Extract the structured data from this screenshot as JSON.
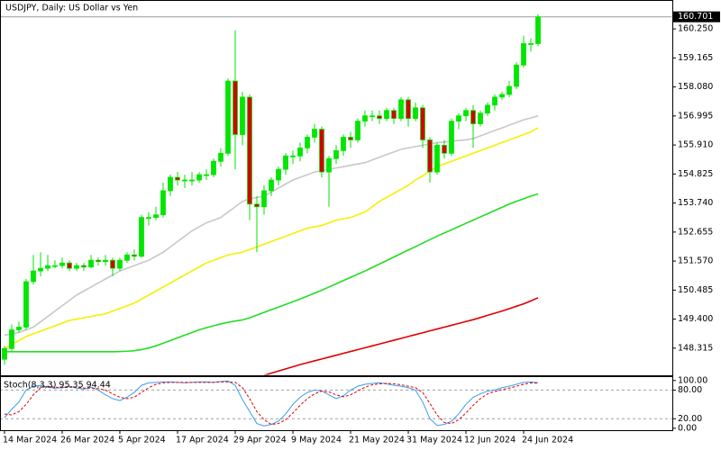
{
  "chart_data": {
    "type": "candlestick",
    "title": "USDJPY, Daily:  US Dollar vs Yen",
    "categories": [
      "14 Mar 2024",
      null,
      null,
      null,
      null,
      null,
      null,
      null,
      "26 Mar 2024",
      null,
      null,
      null,
      null,
      null,
      null,
      null,
      "5 Apr 2024",
      null,
      null,
      null,
      null,
      null,
      null,
      null,
      "17 Apr 2024",
      null,
      null,
      null,
      null,
      null,
      null,
      null,
      "29 Apr 2024",
      null,
      null,
      null,
      null,
      null,
      null,
      null,
      "9 May 2024",
      null,
      null,
      null,
      null,
      null,
      null,
      null,
      "21 May 2024",
      null,
      null,
      null,
      null,
      null,
      null,
      null,
      "31 May 2024",
      null,
      null,
      null,
      null,
      null,
      null,
      null,
      "12 Jun 2024",
      null,
      null,
      null,
      null,
      null,
      null,
      null,
      "24 Jun 2024",
      null,
      null
    ],
    "open": [
      147.9,
      148.3,
      149.0,
      149.1,
      150.8,
      151.2,
      151.3,
      151.4,
      151.4,
      151.5,
      151.3,
      151.4,
      151.35,
      151.6,
      151.55,
      151.6,
      151.3,
      151.6,
      151.8,
      151.75,
      153.2,
      153.2,
      153.3,
      154.2,
      154.7,
      154.6,
      154.6,
      154.6,
      154.8,
      154.8,
      155.3,
      155.6,
      158.3,
      156.3,
      157.7,
      153.7,
      153.6,
      154.2,
      154.6,
      155.0,
      155.5,
      155.5,
      155.8,
      156.2,
      156.5,
      154.9,
      155.4,
      155.7,
      156.2,
      156.1,
      156.8,
      157.0,
      157.0,
      156.9,
      157.2,
      156.9,
      157.6,
      156.9,
      157.3,
      156.1,
      154.9,
      155.9,
      155.6,
      156.8,
      157.0,
      157.2,
      156.7,
      157.1,
      157.4,
      157.7,
      157.8,
      158.1,
      158.9,
      159.7,
      159.7
    ],
    "high": [
      148.4,
      149.2,
      149.3,
      150.9,
      151.8,
      151.9,
      151.8,
      151.6,
      151.7,
      151.6,
      151.5,
      151.5,
      151.8,
      151.7,
      151.8,
      151.7,
      151.7,
      151.9,
      152.0,
      153.3,
      153.4,
      153.6,
      154.5,
      154.8,
      154.9,
      154.8,
      154.9,
      154.9,
      155.0,
      155.4,
      155.8,
      158.4,
      160.2,
      157.9,
      157.8,
      154.0,
      154.4,
      154.7,
      155.1,
      155.6,
      155.7,
      156.0,
      156.3,
      156.7,
      156.6,
      155.5,
      155.9,
      156.3,
      156.4,
      156.9,
      157.2,
      157.2,
      157.2,
      157.3,
      157.3,
      157.7,
      157.7,
      157.5,
      157.4,
      156.2,
      156.0,
      156.1,
      156.9,
      157.1,
      157.3,
      157.4,
      157.2,
      157.5,
      157.8,
      157.9,
      158.3,
      159.0,
      160.0,
      159.9,
      160.8
    ],
    "low": [
      147.7,
      148.2,
      148.9,
      149.0,
      150.7,
      151.0,
      151.2,
      151.3,
      151.3,
      151.2,
      151.2,
      151.2,
      151.3,
      151.4,
      151.4,
      151.0,
      151.2,
      151.5,
      151.6,
      151.7,
      152.9,
      153.1,
      153.2,
      154.0,
      154.4,
      154.3,
      154.4,
      154.5,
      154.6,
      154.7,
      155.1,
      155.5,
      155.0,
      155.9,
      153.1,
      151.9,
      153.3,
      154.0,
      154.4,
      154.8,
      155.2,
      155.3,
      155.6,
      156.0,
      154.7,
      153.6,
      155.2,
      155.5,
      155.8,
      156.0,
      156.6,
      156.8,
      156.7,
      156.8,
      156.7,
      156.8,
      156.6,
      156.8,
      155.8,
      154.5,
      154.8,
      155.4,
      155.5,
      156.5,
      156.8,
      155.8,
      156.6,
      157.0,
      157.2,
      157.6,
      157.7,
      158.0,
      158.8,
      159.4,
      159.6
    ],
    "close": [
      148.3,
      149.0,
      149.1,
      150.8,
      151.2,
      151.3,
      151.4,
      151.4,
      151.5,
      151.3,
      151.4,
      151.35,
      151.6,
      151.55,
      151.6,
      151.3,
      151.6,
      151.8,
      151.75,
      153.2,
      153.2,
      153.3,
      154.2,
      154.7,
      154.6,
      154.6,
      154.6,
      154.8,
      154.8,
      155.3,
      155.6,
      158.3,
      156.3,
      157.7,
      153.7,
      153.6,
      154.2,
      154.6,
      155.0,
      155.5,
      155.5,
      155.8,
      156.2,
      156.5,
      154.9,
      155.4,
      155.7,
      156.2,
      156.1,
      156.8,
      157.0,
      157.0,
      156.9,
      157.2,
      156.9,
      157.6,
      156.9,
      157.3,
      156.1,
      154.9,
      155.9,
      155.6,
      156.8,
      157.0,
      157.2,
      156.7,
      157.1,
      157.4,
      157.7,
      157.8,
      158.1,
      158.9,
      159.7,
      159.7,
      160.7
    ],
    "up_color": "#00e600",
    "down_color": "#d40000",
    "ylim": [
      147.3,
      161.33
    ],
    "yticks": [
      {
        "value": 160.25,
        "label": "160.250"
      },
      {
        "value": 159.165,
        "label": "159.165"
      },
      {
        "value": 158.08,
        "label": "158.080"
      },
      {
        "value": 156.995,
        "label": "156.995"
      },
      {
        "value": 155.91,
        "label": "155.910"
      },
      {
        "value": 154.825,
        "label": "154.825"
      },
      {
        "value": 153.74,
        "label": "153.740"
      },
      {
        "value": 152.655,
        "label": "152.655"
      },
      {
        "value": 151.57,
        "label": "151.570"
      },
      {
        "value": 150.485,
        "label": "150.485"
      },
      {
        "value": 149.4,
        "label": "149.400"
      },
      {
        "value": 148.315,
        "label": "148.315"
      }
    ],
    "last_price": {
      "value": 160.701,
      "label": "160.701"
    },
    "series": [
      {
        "color": "#c8c8c8",
        "values": [
          148.8,
          148.85,
          148.9,
          149.0,
          149.1,
          149.3,
          149.5,
          149.7,
          149.9,
          150.1,
          150.3,
          150.45,
          150.6,
          150.75,
          150.9,
          151.05,
          151.2,
          151.3,
          151.4,
          151.5,
          151.6,
          151.75,
          151.9,
          152.1,
          152.3,
          152.5,
          152.7,
          152.85,
          153.0,
          153.1,
          153.2,
          153.4,
          153.6,
          153.8,
          153.9,
          153.95,
          154.0,
          154.15,
          154.3,
          154.45,
          154.6,
          154.7,
          154.8,
          154.9,
          154.95,
          155.0,
          155.05,
          155.1,
          155.15,
          155.2,
          155.25,
          155.35,
          155.45,
          155.55,
          155.65,
          155.75,
          155.8,
          155.85,
          155.9,
          155.95,
          156.0,
          156.02,
          156.05,
          156.08,
          156.1,
          156.15,
          156.25,
          156.35,
          156.45,
          156.55,
          156.65,
          156.75,
          156.85,
          156.92,
          157.0
        ]
      },
      {
        "color": "#f5f000",
        "values": [
          148.3,
          148.45,
          148.6,
          148.75,
          148.85,
          148.95,
          149.05,
          149.15,
          149.25,
          149.35,
          149.4,
          149.45,
          149.5,
          149.55,
          149.6,
          149.7,
          149.8,
          149.9,
          150.0,
          150.15,
          150.3,
          150.45,
          150.6,
          150.75,
          150.9,
          151.05,
          151.2,
          151.35,
          151.5,
          151.6,
          151.7,
          151.8,
          151.85,
          151.9,
          152.0,
          152.1,
          152.2,
          152.3,
          152.4,
          152.5,
          152.6,
          152.7,
          152.8,
          152.85,
          152.9,
          153.0,
          153.1,
          153.15,
          153.2,
          153.3,
          153.4,
          153.6,
          153.8,
          153.95,
          154.1,
          154.25,
          154.4,
          154.6,
          154.75,
          154.95,
          155.1,
          155.2,
          155.3,
          155.4,
          155.5,
          155.6,
          155.7,
          155.8,
          155.9,
          156.0,
          156.1,
          156.2,
          156.3,
          156.4,
          156.55
        ]
      },
      {
        "color": "#22dd22",
        "values": [
          148.18,
          148.18,
          148.18,
          148.18,
          148.18,
          148.18,
          148.18,
          148.18,
          148.18,
          148.18,
          148.18,
          148.18,
          148.18,
          148.18,
          148.18,
          148.18,
          148.19,
          148.2,
          148.22,
          148.26,
          148.32,
          148.4,
          148.5,
          148.6,
          148.7,
          148.8,
          148.9,
          149.0,
          149.08,
          149.15,
          149.22,
          149.28,
          149.33,
          149.37,
          149.45,
          149.55,
          149.65,
          149.75,
          149.85,
          149.95,
          150.05,
          150.15,
          150.26,
          150.37,
          150.48,
          150.6,
          150.72,
          150.84,
          150.96,
          151.08,
          151.2,
          151.33,
          151.46,
          151.59,
          151.72,
          151.85,
          151.98,
          152.11,
          152.24,
          152.37,
          152.5,
          152.62,
          152.74,
          152.86,
          152.98,
          153.1,
          153.22,
          153.34,
          153.46,
          153.58,
          153.7,
          153.8,
          153.9,
          154.0,
          154.08
        ]
      },
      {
        "color": "#e00000",
        "values": [
          null,
          null,
          null,
          null,
          null,
          null,
          null,
          null,
          null,
          null,
          null,
          null,
          null,
          null,
          null,
          null,
          null,
          null,
          null,
          null,
          null,
          null,
          null,
          null,
          null,
          null,
          null,
          null,
          null,
          null,
          null,
          null,
          null,
          null,
          null,
          null,
          147.3,
          147.38,
          147.46,
          147.54,
          147.62,
          147.7,
          147.77,
          147.84,
          147.91,
          147.98,
          148.05,
          148.12,
          148.19,
          148.26,
          148.33,
          148.4,
          148.47,
          148.54,
          148.61,
          148.68,
          148.75,
          148.82,
          148.89,
          148.96,
          149.03,
          149.1,
          149.17,
          149.24,
          149.31,
          149.38,
          149.46,
          149.54,
          149.62,
          149.7,
          149.79,
          149.88,
          149.97,
          150.08,
          150.2
        ]
      }
    ],
    "stoch": {
      "label": "Stoch(8,3,3) 95.35 94.44",
      "ylim": [
        -4,
        109
      ],
      "yticks": [
        {
          "value": 100,
          "label": "100.00"
        },
        {
          "value": 80,
          "label": "80.00"
        },
        {
          "value": 20,
          "label": "20.00"
        },
        {
          "value": 0,
          "label": "0.00"
        }
      ],
      "levels": [
        80,
        20
      ],
      "series": [
        {
          "color": "#3a9cf0",
          "dash": false,
          "values": [
            22,
            40,
            55,
            80,
            88,
            90,
            86,
            84,
            85,
            88,
            84,
            82,
            86,
            80,
            70,
            62,
            58,
            65,
            75,
            90,
            95,
            96,
            97,
            97,
            96,
            95,
            96,
            97,
            97,
            96,
            98,
            99,
            90,
            60,
            35,
            10,
            5,
            8,
            15,
            30,
            50,
            65,
            75,
            80,
            78,
            70,
            62,
            68,
            80,
            88,
            92,
            94,
            95,
            93,
            90,
            88,
            85,
            80,
            55,
            20,
            6,
            8,
            15,
            30,
            50,
            65,
            72,
            78,
            80,
            85,
            88,
            92,
            96,
            97,
            95.35
          ]
        },
        {
          "color": "#e00000",
          "dash": true,
          "values": [
            30,
            28,
            35,
            50,
            70,
            85,
            88,
            86,
            85,
            86,
            86,
            84,
            84,
            83,
            80,
            72,
            65,
            62,
            65,
            75,
            85,
            92,
            95,
            96,
            96,
            96,
            96,
            96,
            96,
            96,
            97,
            97,
            96,
            85,
            62,
            35,
            18,
            8,
            10,
            18,
            32,
            48,
            62,
            72,
            78,
            76,
            70,
            66,
            70,
            78,
            86,
            91,
            93,
            94,
            93,
            91,
            88,
            85,
            75,
            52,
            28,
            12,
            10,
            18,
            32,
            48,
            62,
            72,
            77,
            81,
            84,
            88,
            92,
            95,
            94.44
          ]
        }
      ]
    }
  }
}
